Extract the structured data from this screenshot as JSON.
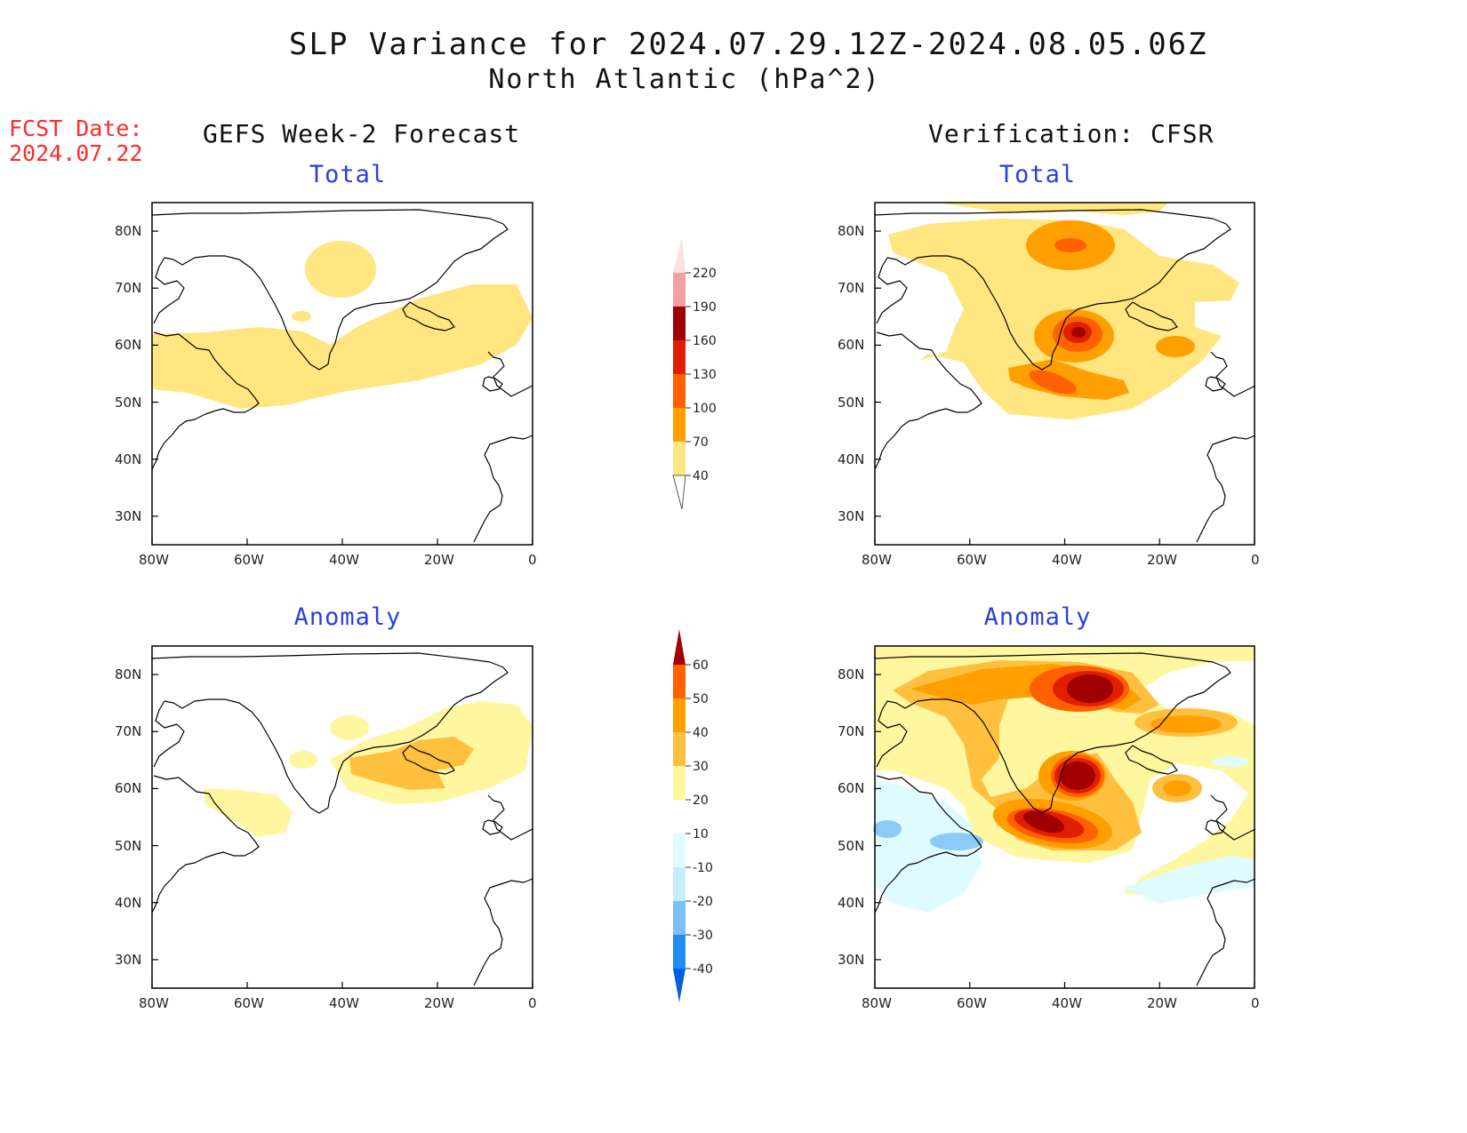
{
  "title_line1": "SLP Variance for 2024.07.29.12Z-2024.08.05.06Z",
  "title_line2": "North Atlantic (hPa^2)",
  "fcst_date_label": "FCST Date:",
  "fcst_date_value": "2024.07.22",
  "left_column_title": "GEFS Week-2 Forecast",
  "right_column_title": "Verification: CFSR",
  "panels": [
    {
      "id": "forecast-total",
      "label": "Total"
    },
    {
      "id": "verification-total",
      "label": "Total"
    },
    {
      "id": "forecast-anomaly",
      "label": "Anomaly"
    },
    {
      "id": "verification-anomaly",
      "label": "Anomaly"
    }
  ],
  "axes": {
    "lat_ticks": [
      "80N",
      "70N",
      "60N",
      "50N",
      "40N",
      "30N"
    ],
    "lon_ticks": [
      "80W",
      "60W",
      "40W",
      "20W",
      "0"
    ],
    "lat_range": [
      25,
      85
    ],
    "lon_range": [
      -80,
      0
    ]
  },
  "colorbar_total": {
    "levels": [
      "40",
      "70",
      "100",
      "130",
      "160",
      "190",
      "220"
    ],
    "colors": [
      "#ffe680",
      "#ffa000",
      "#ff6000",
      "#e01e00",
      "#a00000",
      "#f2a0a0",
      "#fde0e0"
    ]
  },
  "colorbar_anomaly": {
    "levels": [
      "-40",
      "-30",
      "-20",
      "-10",
      "10",
      "20",
      "30",
      "40",
      "50",
      "60"
    ],
    "colors": [
      "#0060e0",
      "#1e8cf0",
      "#7cc0f8",
      "#c8ecff",
      "#e0fbff",
      "#ffffff",
      "#fff6a0",
      "#ffc040",
      "#ffa000",
      "#ff6000",
      "#e01e00",
      "#a00000"
    ]
  },
  "fill_colors": {
    "c10": "#fff6a0",
    "c20": "#ffc040",
    "c30": "#ffa000",
    "c40": "#ff6000",
    "c50": "#e01e00",
    "c60": "#a00000",
    "n10": "#e0fbff",
    "n20": "#8ccaf8",
    "t40": "#ffe680",
    "t70": "#ffa000",
    "t100": "#ff6000",
    "t130": "#e01e00",
    "t160": "#a00000"
  }
}
